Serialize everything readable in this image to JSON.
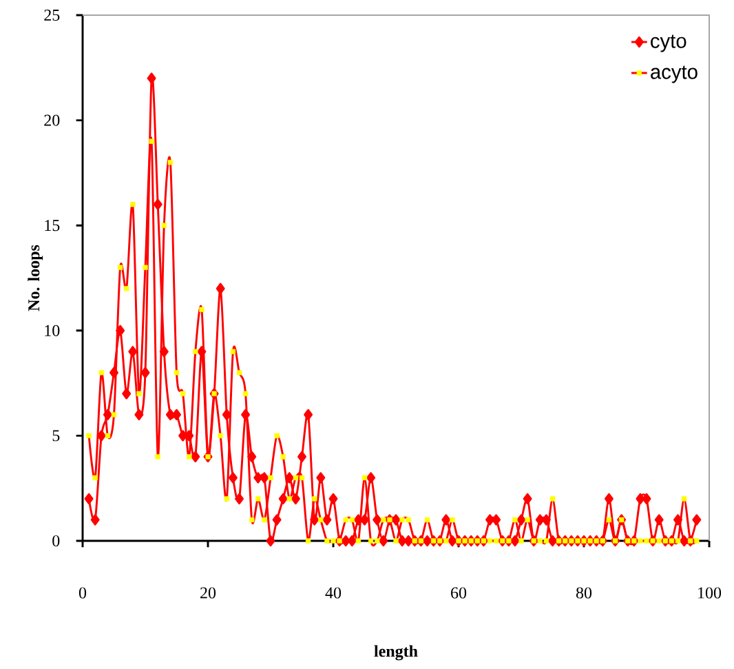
{
  "chart_data": {
    "type": "line",
    "xlabel": "length",
    "ylabel": "No. loops",
    "x": [
      1,
      2,
      3,
      4,
      5,
      6,
      7,
      8,
      9,
      10,
      11,
      12,
      13,
      14,
      15,
      16,
      17,
      18,
      19,
      20,
      21,
      22,
      23,
      24,
      25,
      26,
      27,
      28,
      29,
      30,
      31,
      32,
      33,
      34,
      35,
      36,
      37,
      38,
      39,
      40,
      41,
      42,
      43,
      44,
      45,
      46,
      47,
      48,
      49,
      50,
      51,
      52,
      53,
      54,
      55,
      56,
      57,
      58,
      59,
      60,
      61,
      62,
      63,
      64,
      65,
      66,
      67,
      68,
      69,
      70,
      71,
      72,
      73,
      74,
      75,
      76,
      77,
      78,
      79,
      80,
      81,
      82,
      83,
      84,
      85,
      86,
      87,
      88,
      89,
      90,
      91,
      92,
      93,
      94,
      95,
      96,
      97,
      98
    ],
    "series": [
      {
        "name": "cyto",
        "color": "#ff0000",
        "marker": "diamond",
        "values": [
          2,
          1,
          5,
          6,
          8,
          10,
          7,
          9,
          6,
          8,
          22,
          16,
          9,
          6,
          6,
          5,
          5,
          4,
          9,
          4,
          7,
          12,
          6,
          3,
          2,
          6,
          4,
          3,
          3,
          0,
          1,
          2,
          3,
          2,
          4,
          6,
          1,
          3,
          1,
          2,
          0,
          0,
          0,
          1,
          1,
          3,
          1,
          0,
          1,
          1,
          0,
          0,
          0,
          0,
          0,
          0,
          0,
          1,
          0,
          0,
          0,
          0,
          0,
          0,
          1,
          1,
          0,
          0,
          0,
          1,
          2,
          0,
          1,
          1,
          0,
          0,
          0,
          0,
          0,
          0,
          0,
          0,
          0,
          2,
          0,
          1,
          0,
          0,
          2,
          2,
          0,
          1,
          0,
          0,
          1,
          0,
          0,
          1
        ]
      },
      {
        "name": "acyto",
        "color": "#ffff00",
        "marker": "square",
        "values": [
          5,
          3,
          8,
          5,
          6,
          13,
          12,
          16,
          7,
          13,
          19,
          4,
          15,
          18,
          8,
          7,
          4,
          9,
          11,
          4,
          7,
          5,
          2,
          9,
          8,
          7,
          1,
          2,
          1,
          3,
          5,
          4,
          2,
          3,
          3,
          0,
          2,
          1,
          0,
          0,
          0,
          1,
          1,
          0,
          3,
          0,
          0,
          1,
          1,
          0,
          1,
          1,
          0,
          0,
          1,
          0,
          0,
          0,
          1,
          0,
          0,
          0,
          0,
          0,
          0,
          0,
          0,
          0,
          1,
          0,
          1,
          0,
          0,
          0,
          2,
          0,
          0,
          0,
          0,
          0,
          0,
          0,
          0,
          1,
          0,
          1,
          0,
          0,
          0,
          0,
          0,
          0,
          0,
          0,
          0,
          2,
          0,
          0
        ]
      }
    ],
    "xlim": [
      0,
      100
    ],
    "xticks": [
      0,
      20,
      40,
      60,
      80,
      100
    ],
    "ylim": [
      0,
      25
    ],
    "yticks": [
      0,
      5,
      10,
      15,
      20,
      25
    ],
    "grid": false,
    "legend": "top right"
  }
}
